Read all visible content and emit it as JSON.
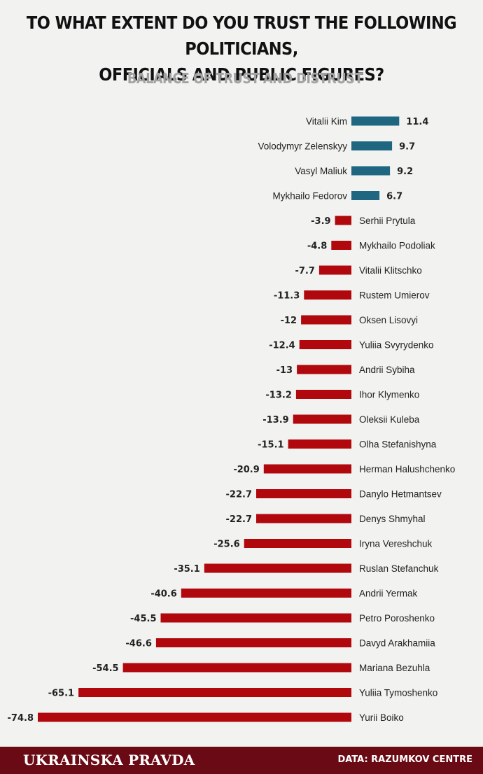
{
  "header": {
    "title_line1": "TO WHAT EXTENT DO YOU TRUST THE FOLLOWING POLITICIANS,",
    "title_line2": "OFFICIALS AND PUBLIC FIGURES?",
    "subtitle": "BALANCE OF TRUST AND DISTRUST"
  },
  "footer": {
    "brand": "UKRAINSKA PRAVDA",
    "source": "DATA: RAZUMKOV CENTRE"
  },
  "colors": {
    "positive": "#1f6781",
    "negative": "#b0080c",
    "footer": "#6a0a14"
  },
  "chart_data": {
    "type": "bar",
    "orientation": "horizontal",
    "title": "TO WHAT EXTENT DO YOU TRUST THE FOLLOWING POLITICIANS, OFFICIALS AND PUBLIC FIGURES?",
    "subtitle": "BALANCE OF TRUST AND DISTRUST",
    "categories": [
      "Vitalii Kim",
      "Volodymyr Zelenskyy",
      "Vasyl Maliuk",
      "Mykhailo Fedorov",
      "Serhii Prytula",
      "Mykhailo Podoliak",
      "Vitalii Klitschko",
      "Rustem Umierov",
      "Oksen Lisovyi",
      "Yuliia Svyrydenko",
      "Andrii Sybiha",
      "Ihor Klymenko",
      "Oleksii Kuleba",
      "Olha Stefanishyna",
      "Herman Halushchenko",
      "Danylo Hetmantsev",
      "Denys Shmyhal",
      "Iryna Vereshchuk",
      "Ruslan Stefanchuk",
      "Andrii Yermak",
      "Petro Poroshenko",
      "Davyd Arakhamiia",
      "Mariana Bezuhla",
      "Yuliia Tymoshenko",
      "Yurii Boiko"
    ],
    "values": [
      11.4,
      9.7,
      9.2,
      6.7,
      -3.9,
      -4.8,
      -7.7,
      -11.3,
      -12,
      -12.4,
      -13,
      -13.2,
      -13.9,
      -15.1,
      -20.9,
      -22.7,
      -22.7,
      -25.6,
      -35.1,
      -40.6,
      -45.5,
      -46.6,
      -54.5,
      -65.1,
      -74.8
    ],
    "value_labels": [
      "11.4",
      "9.7",
      "9.2",
      "6.7",
      "-3.9",
      "-4.8",
      "-7.7",
      "-11.3",
      "-12",
      "-12.4",
      "-13",
      "-13.2",
      "-13.9",
      "-15.1",
      "-20.9",
      "-22.7",
      "-22.7",
      "-25.6",
      "-35.1",
      "-40.6",
      "-45.5",
      "-46.6",
      "-54.5",
      "-65.1",
      "-74.8"
    ],
    "xlim": [
      -74.8,
      11.4
    ],
    "grid": false,
    "legend": "none"
  }
}
